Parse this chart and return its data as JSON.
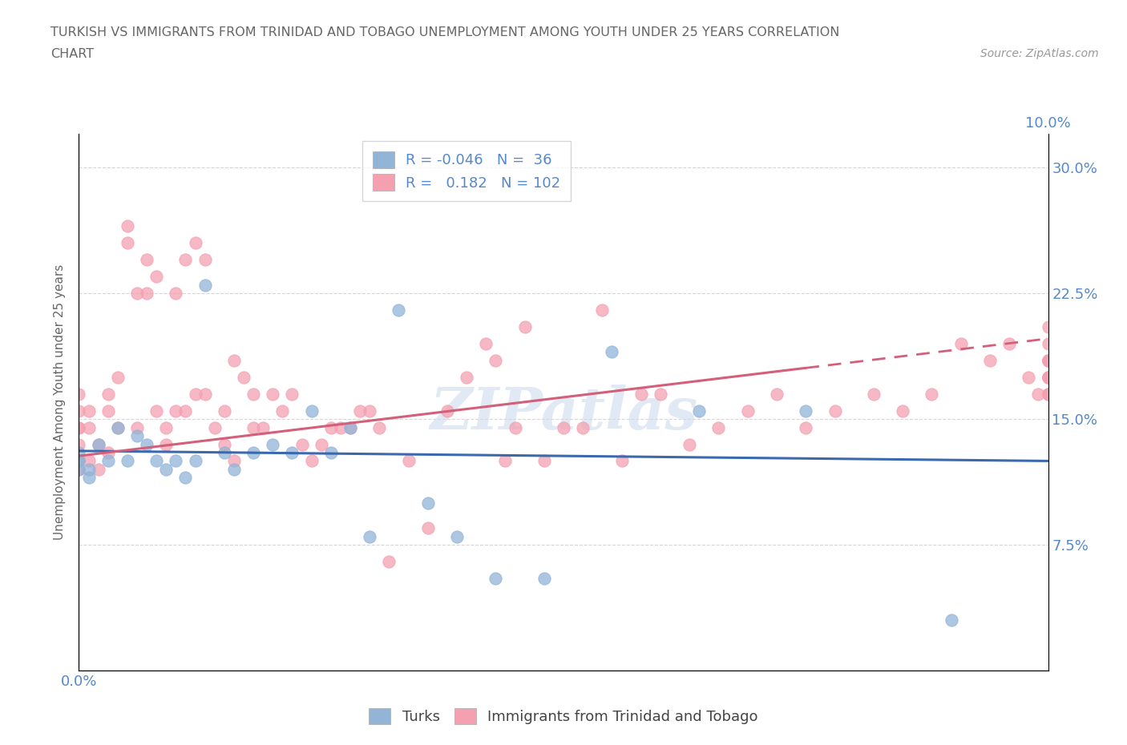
{
  "title_line1": "TURKISH VS IMMIGRANTS FROM TRINIDAD AND TOBAGO UNEMPLOYMENT AMONG YOUTH UNDER 25 YEARS CORRELATION",
  "title_line2": "CHART",
  "source_text": "Source: ZipAtlas.com",
  "ylabel": "Unemployment Among Youth under 25 years",
  "xlim": [
    0.0,
    0.1
  ],
  "ylim": [
    0.0,
    0.32
  ],
  "blue_color": "#92b4d7",
  "pink_color": "#f4a0b0",
  "trendline_blue_color": "#3a6aad",
  "trendline_pink_color": "#d45f7a",
  "watermark_color": "#c8d8ec",
  "background_color": "#ffffff",
  "grid_color": "#cccccc",
  "title_color": "#666666",
  "axis_label_color": "#666666",
  "tick_label_color": "#5588cc",
  "turks_x": [
    0.0,
    0.0,
    0.0,
    0.0,
    0.001,
    0.001,
    0.002,
    0.003,
    0.004,
    0.005,
    0.006,
    0.007,
    0.008,
    0.009,
    0.01,
    0.011,
    0.012,
    0.013,
    0.015,
    0.016,
    0.018,
    0.02,
    0.022,
    0.024,
    0.026,
    0.028,
    0.03,
    0.033,
    0.036,
    0.039,
    0.043,
    0.048,
    0.055,
    0.064,
    0.075,
    0.09
  ],
  "turks_y": [
    0.125,
    0.13,
    0.12,
    0.125,
    0.115,
    0.12,
    0.135,
    0.125,
    0.145,
    0.125,
    0.14,
    0.135,
    0.125,
    0.12,
    0.125,
    0.115,
    0.125,
    0.23,
    0.13,
    0.12,
    0.13,
    0.135,
    0.13,
    0.155,
    0.13,
    0.145,
    0.08,
    0.215,
    0.1,
    0.08,
    0.055,
    0.055,
    0.19,
    0.155,
    0.155,
    0.03
  ],
  "tt_x": [
    0.0,
    0.0,
    0.0,
    0.0,
    0.0,
    0.0,
    0.0,
    0.001,
    0.001,
    0.001,
    0.002,
    0.002,
    0.003,
    0.003,
    0.003,
    0.004,
    0.004,
    0.005,
    0.005,
    0.006,
    0.006,
    0.007,
    0.007,
    0.008,
    0.008,
    0.009,
    0.009,
    0.01,
    0.01,
    0.011,
    0.011,
    0.012,
    0.012,
    0.013,
    0.013,
    0.014,
    0.015,
    0.015,
    0.016,
    0.016,
    0.017,
    0.018,
    0.018,
    0.019,
    0.02,
    0.021,
    0.022,
    0.023,
    0.024,
    0.025,
    0.026,
    0.027,
    0.028,
    0.029,
    0.03,
    0.031,
    0.032,
    0.034,
    0.036,
    0.038,
    0.04,
    0.042,
    0.043,
    0.044,
    0.045,
    0.046,
    0.048,
    0.05,
    0.052,
    0.054,
    0.056,
    0.058,
    0.06,
    0.063,
    0.066,
    0.069,
    0.072,
    0.075,
    0.078,
    0.082,
    0.085,
    0.088,
    0.091,
    0.094,
    0.096,
    0.098,
    0.099,
    0.1,
    0.1,
    0.1,
    0.1,
    0.1,
    0.1,
    0.1,
    0.1,
    0.1,
    0.1,
    0.1,
    0.1,
    0.1,
    0.1,
    0.1
  ],
  "tt_y": [
    0.125,
    0.145,
    0.155,
    0.165,
    0.135,
    0.145,
    0.12,
    0.125,
    0.145,
    0.155,
    0.135,
    0.12,
    0.155,
    0.165,
    0.13,
    0.175,
    0.145,
    0.255,
    0.265,
    0.145,
    0.225,
    0.245,
    0.225,
    0.235,
    0.155,
    0.145,
    0.135,
    0.155,
    0.225,
    0.245,
    0.155,
    0.165,
    0.255,
    0.245,
    0.165,
    0.145,
    0.135,
    0.155,
    0.185,
    0.125,
    0.175,
    0.145,
    0.165,
    0.145,
    0.165,
    0.155,
    0.165,
    0.135,
    0.125,
    0.135,
    0.145,
    0.145,
    0.145,
    0.155,
    0.155,
    0.145,
    0.065,
    0.125,
    0.085,
    0.155,
    0.175,
    0.195,
    0.185,
    0.125,
    0.145,
    0.205,
    0.125,
    0.145,
    0.145,
    0.215,
    0.125,
    0.165,
    0.165,
    0.135,
    0.145,
    0.155,
    0.165,
    0.145,
    0.155,
    0.165,
    0.155,
    0.165,
    0.195,
    0.185,
    0.195,
    0.175,
    0.165,
    0.185,
    0.175,
    0.165,
    0.175,
    0.165,
    0.185,
    0.175,
    0.205,
    0.195,
    0.185,
    0.175,
    0.165,
    0.185,
    0.185,
    0.175
  ],
  "trendline_blue_x0": 0.0,
  "trendline_blue_y0": 0.131,
  "trendline_blue_x1": 0.1,
  "trendline_blue_y1": 0.125,
  "trendline_pink_x0": 0.0,
  "trendline_pink_y0": 0.128,
  "trendline_pink_x1": 0.1,
  "trendline_pink_y1": 0.198
}
